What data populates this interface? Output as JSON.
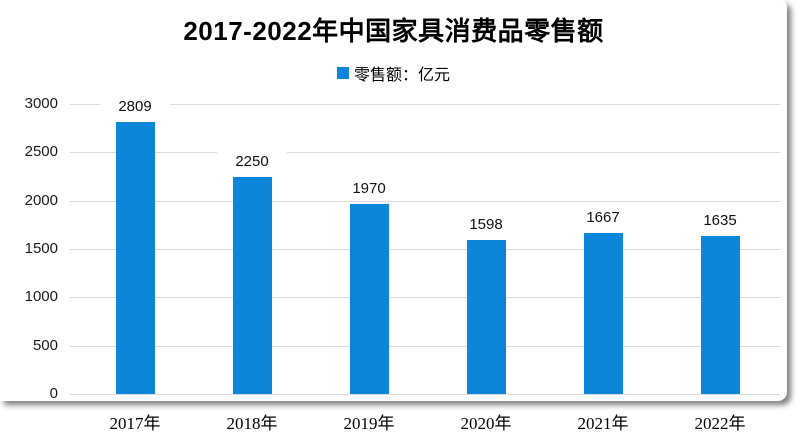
{
  "chart_data": {
    "type": "bar",
    "title": "2017-2022年中国家具消费品零售额",
    "legend": "零售额：亿元",
    "legend_position": "top-center",
    "categories": [
      "2017年",
      "2018年",
      "2019年",
      "2020年",
      "2021年",
      "2022年"
    ],
    "values": [
      2809,
      2250,
      1970,
      1598,
      1667,
      1635
    ],
    "yticks": [
      0,
      500,
      1000,
      1500,
      2000,
      2500,
      3000
    ],
    "ylim": [
      0,
      3000
    ],
    "grid": true,
    "value_labels": true,
    "colors": {
      "bar": "#0c86d8",
      "gridline": "#d9d9d9",
      "text": "#000000",
      "background": "#ffffff"
    }
  }
}
